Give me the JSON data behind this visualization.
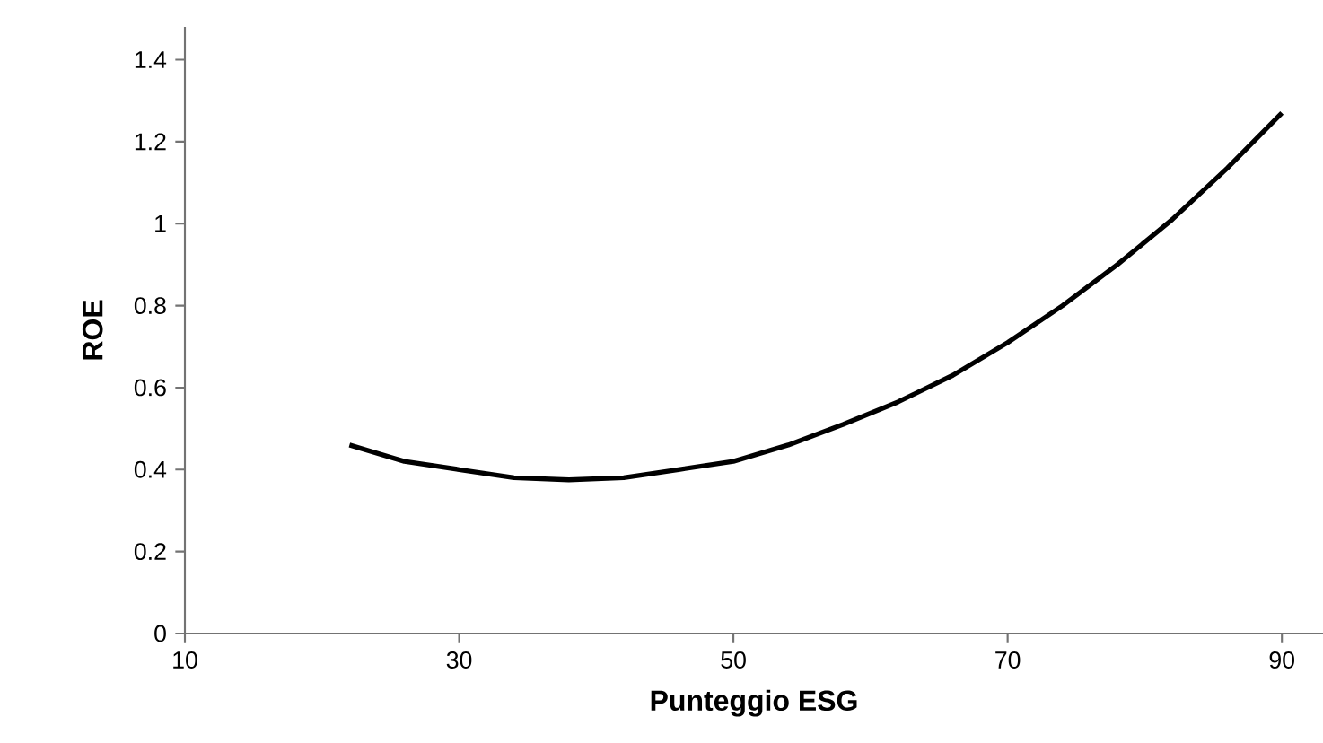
{
  "chart_data": {
    "type": "line",
    "xlabel": "Punteggio ESG",
    "ylabel": "ROE",
    "x": [
      22,
      26,
      30,
      34,
      38,
      42,
      46,
      50,
      54,
      58,
      62,
      66,
      70,
      74,
      78,
      82,
      86,
      90
    ],
    "series": [
      {
        "color": "#000000",
        "values": [
          0.46,
          0.42,
          0.4,
          0.38,
          0.375,
          0.38,
          0.4,
          0.42,
          0.46,
          0.51,
          0.565,
          0.63,
          0.71,
          0.8,
          0.9,
          1.01,
          1.135,
          1.27
        ]
      }
    ],
    "xlim": [
      10,
      93
    ],
    "ylim": [
      0,
      1.48
    ],
    "xticks": [
      10,
      30,
      50,
      70,
      90
    ],
    "yticks": [
      {
        "value": 0,
        "label": "0"
      },
      {
        "value": 0.2,
        "label": "0.2"
      },
      {
        "value": 0.4,
        "label": "0.4"
      },
      {
        "value": 0.6,
        "label": "0.6"
      },
      {
        "value": 0.8,
        "label": "0.8"
      },
      {
        "value": 1,
        "label": "1"
      },
      {
        "value": 1.2,
        "label": "1.2"
      },
      {
        "value": 1.4,
        "label": "1.4"
      }
    ]
  }
}
